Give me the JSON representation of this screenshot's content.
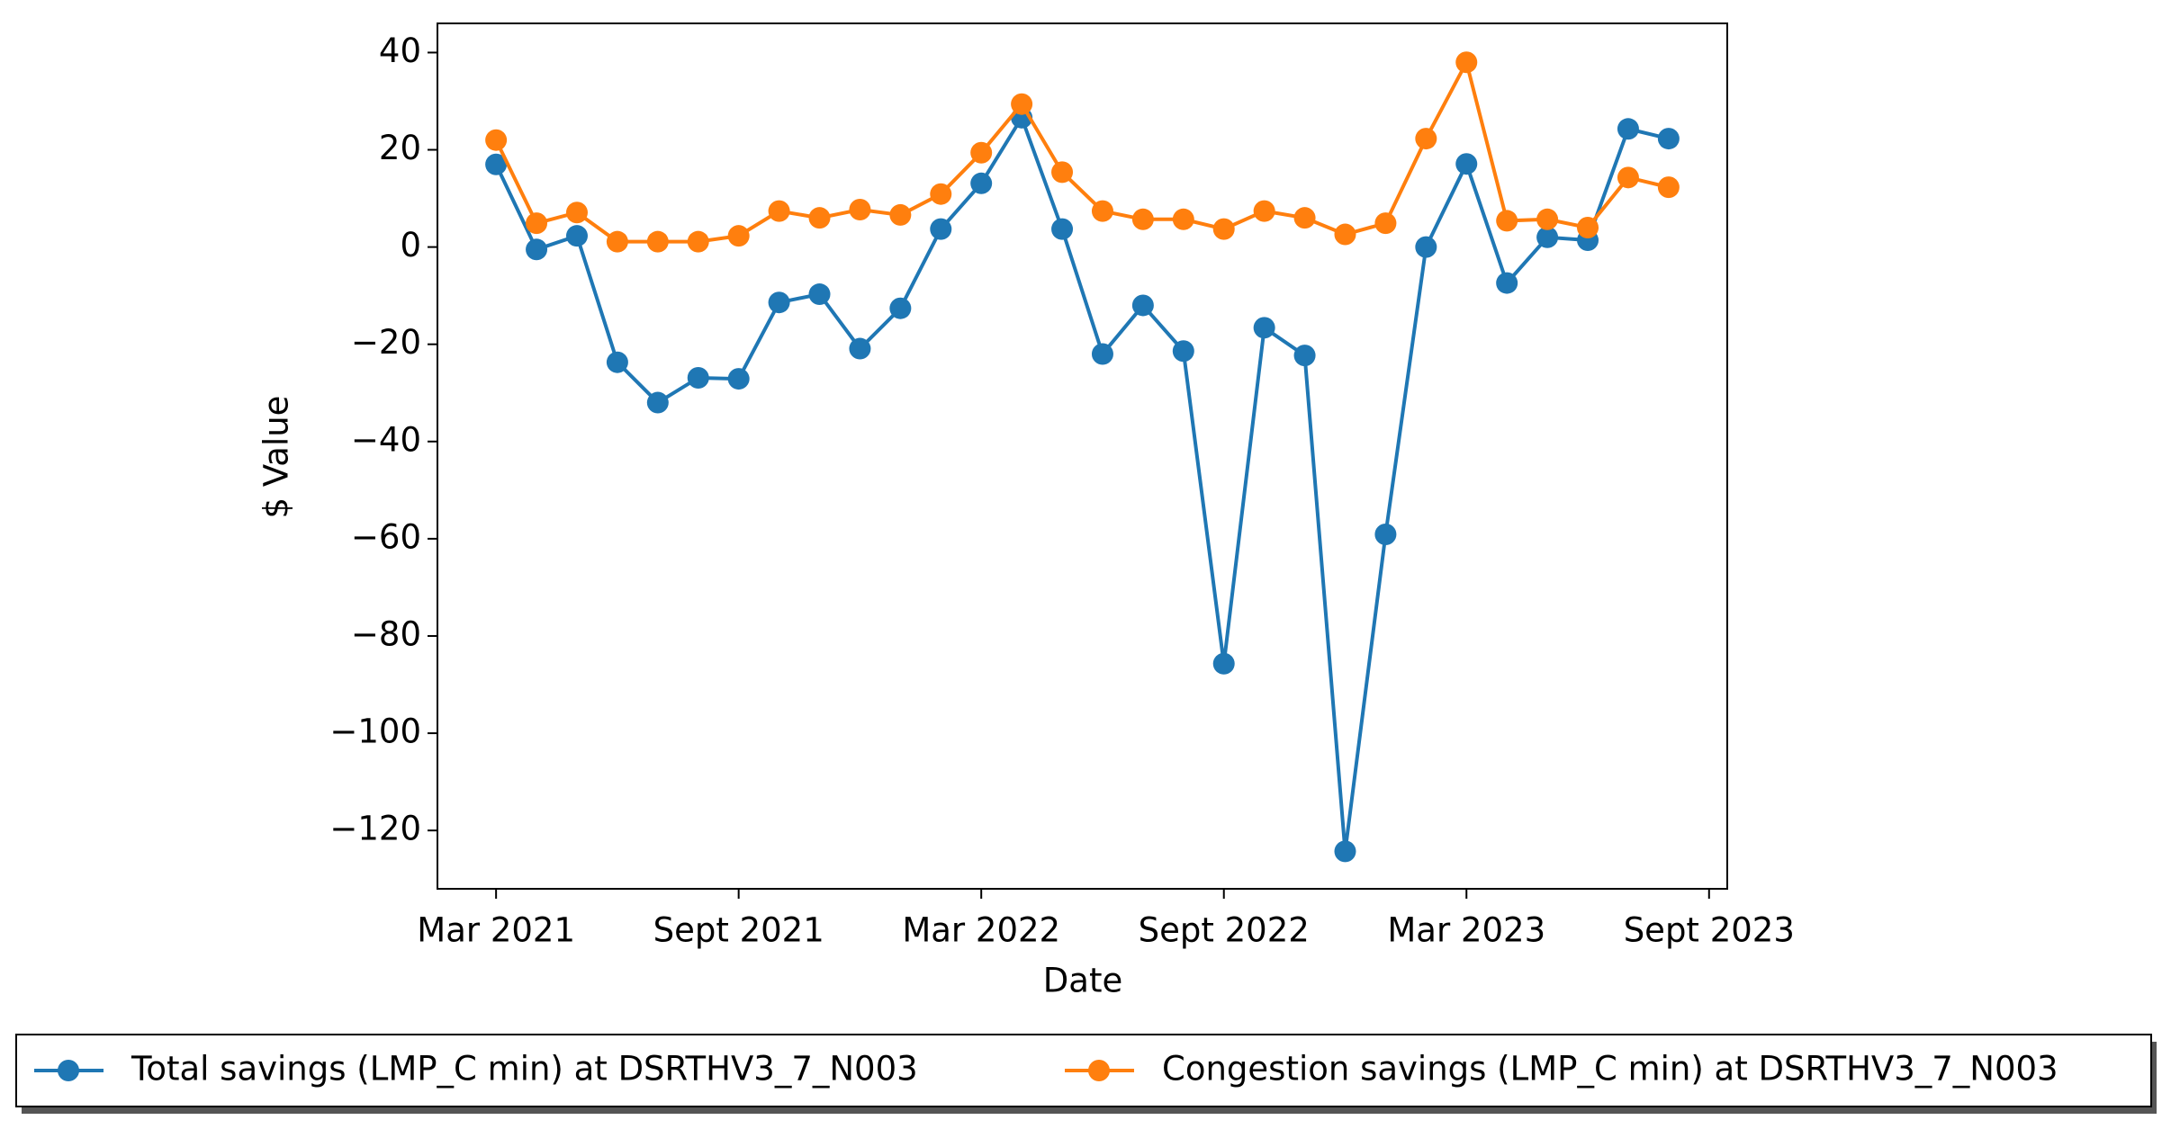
{
  "chart_data": {
    "type": "line",
    "xlabel": "Date",
    "ylabel": "$ Value",
    "x": [
      "2021-03",
      "2021-04",
      "2021-05",
      "2021-06",
      "2021-07",
      "2021-08",
      "2021-09",
      "2021-10",
      "2021-11",
      "2021-12",
      "2022-01",
      "2022-02",
      "2022-03",
      "2022-04",
      "2022-05",
      "2022-06",
      "2022-07",
      "2022-08",
      "2022-09",
      "2022-10",
      "2022-11",
      "2022-12",
      "2023-01",
      "2023-02",
      "2023-03",
      "2023-04",
      "2023-05",
      "2023-06",
      "2023-07",
      "2023-08"
    ],
    "series": [
      {
        "name": "Total savings (LMP_C min) at DSRTHV3_7_N003",
        "color": "#1f77b4",
        "values": [
          17,
          -0.5,
          2.3,
          -23.7,
          -32,
          -26.9,
          -27.1,
          -11.4,
          -9.7,
          -20.9,
          -12.6,
          3.7,
          13.1,
          26.6,
          3.7,
          -22,
          -12,
          -21.4,
          -85.7,
          -16.6,
          -22.3,
          -124.3,
          -59.1,
          0,
          17.1,
          -7.4,
          2,
          1.4,
          24.3,
          22.3
        ]
      },
      {
        "name": "Congestion savings (LMP_C min) at DSRTHV3_7_N003",
        "color": "#ff7f0e",
        "values": [
          22,
          4.9,
          7.1,
          1.1,
          1.1,
          1.1,
          2.3,
          7.4,
          6,
          7.7,
          6.6,
          10.9,
          19.4,
          29.4,
          15.4,
          7.4,
          5.7,
          5.7,
          3.7,
          7.4,
          6,
          2.6,
          4.9,
          22.3,
          38,
          5.4,
          5.7,
          4,
          14.3,
          12.3
        ]
      }
    ],
    "xticks": [
      {
        "value": "2021-03",
        "label": "Mar 2021"
      },
      {
        "value": "2021-09",
        "label": "Sept 2021"
      },
      {
        "value": "2022-03",
        "label": "Mar 2022"
      },
      {
        "value": "2022-09",
        "label": "Sept 2022"
      },
      {
        "value": "2023-03",
        "label": "Mar 2023"
      },
      {
        "value": "2023-09",
        "label": "Sept 2023"
      }
    ],
    "ylim": [
      -132,
      46
    ],
    "yticks": [
      {
        "value": -120,
        "label": "−120"
      },
      {
        "value": -100,
        "label": "−100"
      },
      {
        "value": -80,
        "label": "−80"
      },
      {
        "value": -60,
        "label": "−60"
      },
      {
        "value": -40,
        "label": "−40"
      },
      {
        "value": -20,
        "label": "−20"
      },
      0,
      20,
      40
    ],
    "legend": "below"
  }
}
